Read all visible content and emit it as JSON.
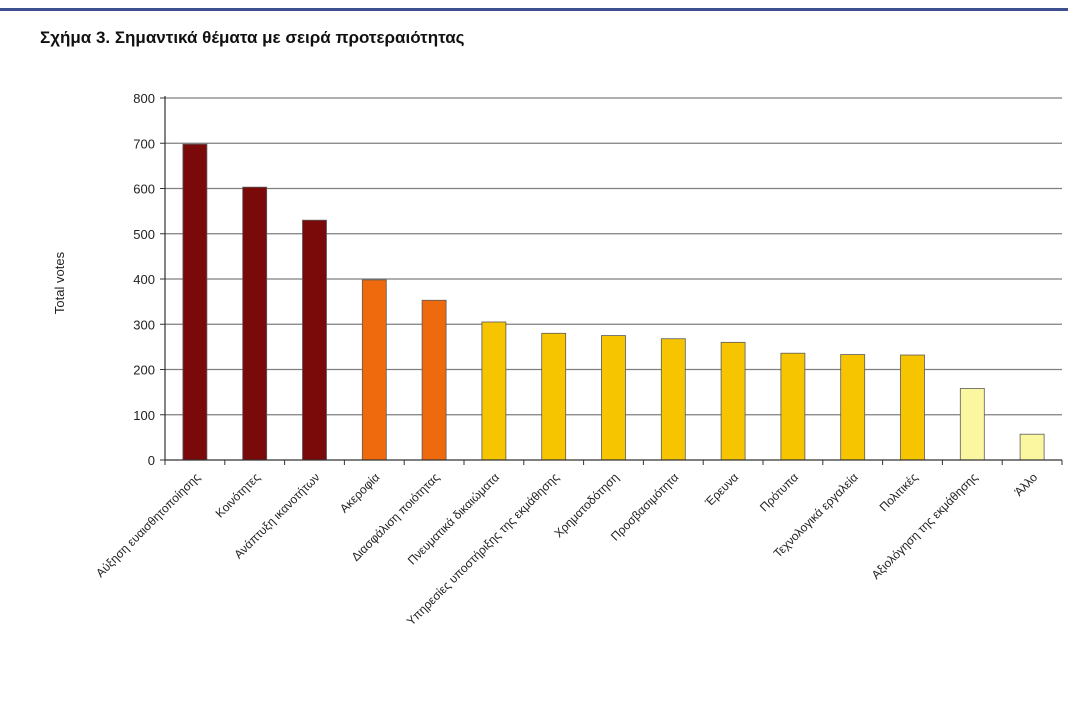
{
  "title": "Σχήμα 3. Σημαντικά θέματα με σειρά προτεραιότητας",
  "colors": {
    "dark_red": "#7a0a0a",
    "orange": "#ee6a0c",
    "gold": "#f7c400",
    "pale_yellow": "#fbf7a0",
    "gridline": "#7f7f7f",
    "title_rule": "#3d4f8f"
  },
  "chart_data": {
    "type": "bar",
    "title": "Σχήμα 3. Σημαντικά θέματα με σειρά προτεραιότητας",
    "xlabel": "",
    "ylabel": "Total votes",
    "ylim": [
      0,
      800
    ],
    "yticks": [
      0,
      100,
      200,
      300,
      400,
      500,
      600,
      700,
      800
    ],
    "grid": true,
    "legend": "none",
    "categories": [
      "Αύξηση ευαισθητοποίησης",
      "Κοινότητες",
      "Ανάπτυξη ικανοτήτων",
      "Ακεροφία",
      "Διασφάλιση ποιότητας",
      "Πνευματικά δικαιώματα",
      "Υπηρεσίες υποστήριξης της εκμάθησης",
      "Χρηματοδότηση",
      "Προσβασιμότητα",
      "Έρευνα",
      "Πρότυπα",
      "Τεχνολογικά εργαλεία",
      "Πολιτικές",
      "Αξιολόγηση της εκμάθησης",
      "Άλλο"
    ],
    "values": [
      698,
      603,
      530,
      398,
      353,
      305,
      280,
      275,
      268,
      260,
      236,
      233,
      232,
      158,
      57
    ],
    "bar_colors": [
      "dark_red",
      "dark_red",
      "dark_red",
      "orange",
      "orange",
      "gold",
      "gold",
      "gold",
      "gold",
      "gold",
      "gold",
      "gold",
      "gold",
      "pale_yellow",
      "pale_yellow"
    ]
  }
}
